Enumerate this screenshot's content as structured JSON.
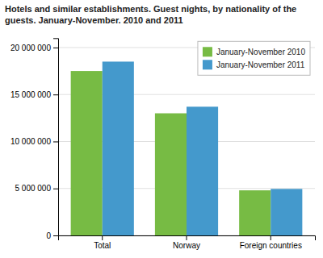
{
  "chart_data": {
    "type": "bar",
    "title": "Hotels and similar establishments. Guest nights, by nationality of the\nguests. January-November. 2010 and 2011",
    "categories": [
      "Total",
      "Norway",
      "Foreign countries"
    ],
    "series": [
      {
        "name": "January-November 2010",
        "color": "#77bb44",
        "values": [
          17500000,
          13000000,
          4800000
        ]
      },
      {
        "name": "January-November 2011",
        "color": "#4499cc",
        "values": [
          18500000,
          13700000,
          4950000
        ]
      }
    ],
    "ylim": [
      0,
      21000000
    ],
    "yticks": [
      0,
      {
        "value": 5000000,
        "label": "5 000 000"
      },
      {
        "value": 10000000,
        "label": "10 000 000"
      },
      {
        "value": 15000000,
        "label": "15 000 000"
      },
      {
        "value": 20000000,
        "label": "20 000 000"
      }
    ],
    "grid": true,
    "legend": "upper right"
  }
}
